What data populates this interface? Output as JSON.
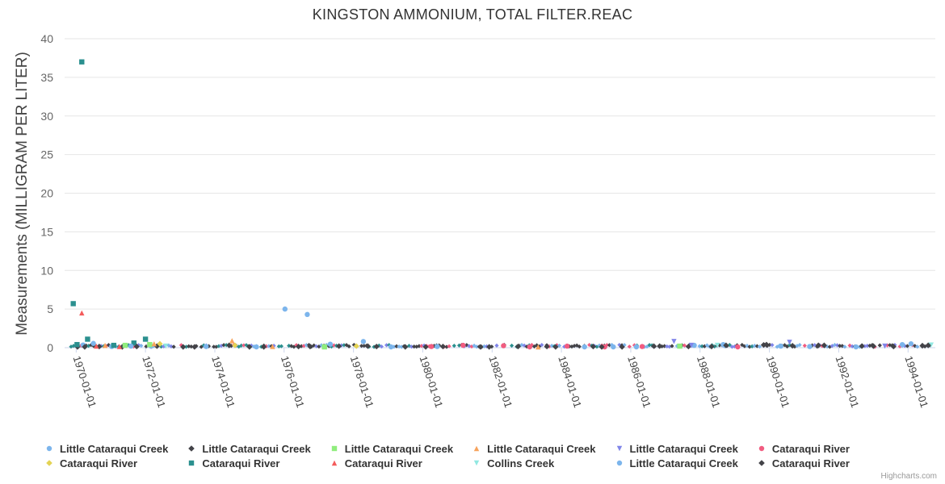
{
  "chart_data": {
    "type": "scatter",
    "title": "KINGSTON AMMONIUM, TOTAL FILTER.REAC",
    "xlabel": "",
    "ylabel": "Measurements (MILLIGRAM PER LITER)",
    "ylim": [
      0,
      40
    ],
    "yticks": [
      "0",
      "5",
      "10",
      "15",
      "20",
      "25",
      "30",
      "35",
      "40"
    ],
    "xlim": [
      "1969-09-01",
      "1994-10-15"
    ],
    "xticks": [
      "1970-01-01",
      "1972-01-01",
      "1974-01-01",
      "1976-01-01",
      "1978-01-01",
      "1980-01-01",
      "1982-01-01",
      "1984-01-01",
      "1986-01-01",
      "1988-01-01",
      "1990-01-01",
      "1992-01-01",
      "1994-01-01"
    ],
    "grid": true,
    "legend_position": "bottom",
    "series": [
      {
        "name": "Little Cataraqui Creek",
        "color": "#7cb5ec",
        "marker": "circle",
        "x": [
          "1970-03-15",
          "1970-07-01",
          "1971-01-10",
          "1972-03-01",
          "1975-03-15",
          "1976-01-10",
          "1976-09-01",
          "1977-05-01",
          "1978-04-15",
          "1980-06-01",
          "1984-09-01",
          "1986-03-01",
          "1987-11-01",
          "1988-09-01",
          "1990-05-01",
          "1992-07-01",
          "1994-02-01"
        ],
        "y": [
          0.35,
          0.55,
          0.15,
          0.2,
          0.1,
          5.0,
          4.3,
          0.45,
          0.8,
          0.15,
          0.1,
          0.1,
          0.3,
          0.4,
          0.2,
          0.1,
          0.5
        ]
      },
      {
        "name": "Little Cataraqui Creek",
        "color": "#434348",
        "marker": "diamond",
        "x": [
          "1970-01-15",
          "1970-09-01",
          "1971-05-01",
          "1972-05-01",
          "1973-02-01",
          "1974-06-01",
          "1975-06-01",
          "1976-06-01",
          "1977-08-01",
          "1978-09-01",
          "1979-07-01",
          "1980-08-01",
          "1981-09-01",
          "1982-10-01",
          "1983-11-01",
          "1984-12-01",
          "1985-10-01",
          "1986-11-01",
          "1987-09-01",
          "1988-10-01",
          "1989-11-01",
          "1990-09-01",
          "1991-08-01",
          "1992-09-01",
          "1993-08-01",
          "1994-06-01"
        ],
        "y": [
          0.1,
          0.15,
          0.1,
          0.2,
          0.1,
          0.3,
          0.1,
          0.15,
          0.2,
          0.15,
          0.1,
          0.15,
          0.1,
          0.15,
          0.1,
          0.15,
          0.1,
          0.2,
          0.15,
          0.3,
          0.35,
          0.25,
          0.3,
          0.2,
          0.15,
          0.25
        ]
      },
      {
        "name": "Little Cataraqui Creek",
        "color": "#90ed7d",
        "marker": "square",
        "x": [
          "1971-06-01",
          "1972-02-15",
          "1977-03-01",
          "1987-06-01"
        ],
        "y": [
          0.3,
          0.4,
          0.1,
          0.2
        ]
      },
      {
        "name": "Little Cataraqui Creek",
        "color": "#f7a35c",
        "marker": "triangle",
        "x": [
          "1970-11-01",
          "1972-04-01",
          "1974-07-01",
          "1975-09-01",
          "1983-05-01"
        ],
        "y": [
          0.3,
          0.5,
          0.9,
          0.15,
          0.1
        ]
      },
      {
        "name": "Little Cataraqui Creek",
        "color": "#8085e9",
        "marker": "triangle-down",
        "x": [
          "1987-04-01",
          "1987-10-01",
          "1990-08-01",
          "1993-05-01"
        ],
        "y": [
          0.8,
          0.3,
          0.7,
          0.2
        ]
      },
      {
        "name": "Cataraqui River",
        "color": "#f15c80",
        "marker": "circle",
        "x": [
          "1980-04-01",
          "1981-03-01",
          "1982-05-01",
          "1983-02-01",
          "1984-03-01",
          "1985-04-01",
          "1986-05-01",
          "1989-02-01"
        ],
        "y": [
          0.15,
          0.3,
          0.25,
          0.1,
          0.2,
          0.1,
          0.15,
          0.1
        ]
      },
      {
        "name": "Cataraqui River",
        "color": "#e4d354",
        "marker": "diamond",
        "x": [
          "1972-06-01",
          "1974-08-01",
          "1978-02-01"
        ],
        "y": [
          0.5,
          0.3,
          0.2
        ]
      },
      {
        "name": "Cataraqui River",
        "color": "#2b908f",
        "marker": "square",
        "x": [
          "1969-12-01",
          "1970-01-10",
          "1970-03-01",
          "1970-05-01",
          "1971-02-01",
          "1971-09-01",
          "1972-01-01"
        ],
        "y": [
          5.7,
          0.4,
          37.0,
          1.1,
          0.3,
          0.6,
          1.1
        ]
      },
      {
        "name": "Cataraqui River",
        "color": "#f45b5b",
        "marker": "triangle",
        "x": [
          "1970-03-01",
          "1970-08-01",
          "1971-04-01"
        ],
        "y": [
          4.5,
          0.2,
          0.15
        ]
      },
      {
        "name": "Collins Creek",
        "color": "#91e8e1",
        "marker": "triangle-down",
        "x": [
          "1972-08-01",
          "1988-07-01",
          "1994-09-01"
        ],
        "y": [
          0.2,
          0.3,
          0.35
        ]
      },
      {
        "name": "Little Cataraqui Creek",
        "color": "#7cb5ec",
        "marker": "circle",
        "x": [
          "1971-08-01",
          "1973-10-01",
          "1979-02-01",
          "1985-07-01",
          "1991-03-01",
          "1993-11-01"
        ],
        "y": [
          0.2,
          0.15,
          0.1,
          0.1,
          0.15,
          0.4
        ]
      },
      {
        "name": "Cataraqui River",
        "color": "#434348",
        "marker": "diamond",
        "x": [
          "1970-04-01",
          "1971-10-01",
          "1973-06-01",
          "1975-01-01",
          "1976-10-01",
          "1978-06-01",
          "1980-02-01",
          "1981-12-01",
          "1983-08-01",
          "1985-03-01",
          "1986-09-01",
          "1988-05-01",
          "1989-12-01",
          "1991-06-01",
          "1993-01-01",
          "1994-08-01"
        ],
        "y": [
          0.1,
          0.15,
          0.1,
          0.1,
          0.15,
          0.2,
          0.1,
          0.1,
          0.15,
          0.1,
          0.2,
          0.15,
          0.4,
          0.3,
          0.2,
          0.3
        ]
      }
    ]
  },
  "credits": "Highcharts.com"
}
